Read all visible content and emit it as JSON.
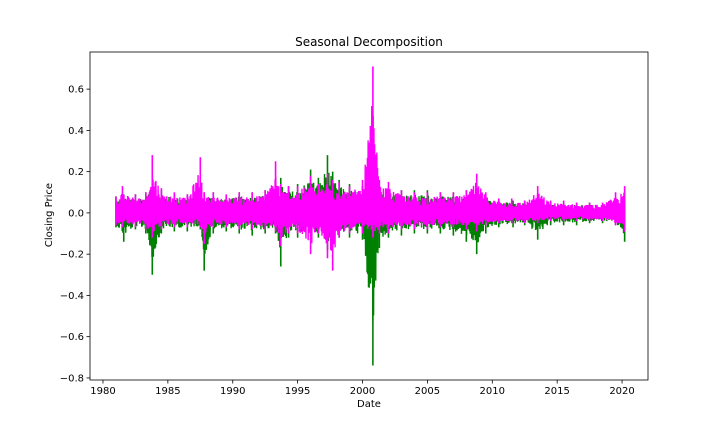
{
  "chart_data": {
    "type": "line",
    "title": "Seasonal Decomposition",
    "xlabel": "Date",
    "ylabel": "Closing Price",
    "xlim": [
      1979,
      2022
    ],
    "ylim": [
      -0.81,
      0.78
    ],
    "grid": false,
    "xticks": [
      1980,
      1985,
      1990,
      1995,
      2000,
      2005,
      2010,
      2015,
      2020
    ],
    "xtick_labels": [
      "1980",
      "1985",
      "1990",
      "1995",
      "2000",
      "2005",
      "2010",
      "2015",
      "2020"
    ],
    "yticks": [
      0.6,
      0.4,
      0.2,
      0.0,
      -0.2,
      -0.4,
      -0.6,
      -0.8
    ],
    "ytick_labels": [
      "0.6",
      "0.4",
      "0.2",
      "0.0",
      "−0.2",
      "−0.4",
      "−0.6",
      "−0.8"
    ],
    "series": [
      {
        "color": "#008000",
        "x": [
          1981.0,
          1981.6,
          1982.5,
          1983.3,
          1983.8,
          1984.5,
          1985.5,
          1986.5,
          1987.5,
          1987.8,
          1988.5,
          1989.5,
          1990.5,
          1991.5,
          1992.5,
          1993.3,
          1993.7,
          1994.3,
          1995.0,
          1996.0,
          1996.6,
          1997.3,
          1997.7,
          1998.2,
          1999.0,
          2000.0,
          2000.8,
          2001.3,
          2002.0,
          2003.0,
          2004.0,
          2005.0,
          2006.0,
          2007.0,
          2008.0,
          2008.8,
          2009.5,
          2010.5,
          2011.6,
          2012.5,
          2013.5,
          2014.5,
          2015.5,
          2016.5,
          2017.5,
          2018.5,
          2019.5,
          2020.2
        ],
        "low": [
          -0.07,
          -0.14,
          -0.08,
          -0.1,
          -0.3,
          -0.1,
          -0.09,
          -0.09,
          -0.08,
          -0.28,
          -0.1,
          -0.09,
          -0.1,
          -0.11,
          -0.1,
          -0.1,
          -0.26,
          -0.12,
          -0.12,
          -0.13,
          -0.12,
          -0.18,
          -0.14,
          -0.12,
          -0.12,
          -0.13,
          -0.74,
          -0.17,
          -0.12,
          -0.11,
          -0.1,
          -0.1,
          -0.1,
          -0.11,
          -0.14,
          -0.2,
          -0.1,
          -0.07,
          -0.07,
          -0.06,
          -0.13,
          -0.06,
          -0.06,
          -0.06,
          -0.05,
          -0.05,
          -0.06,
          -0.14
        ],
        "high": [
          0.08,
          0.09,
          0.09,
          0.1,
          0.16,
          0.11,
          0.09,
          0.09,
          0.1,
          0.1,
          0.1,
          0.08,
          0.1,
          0.1,
          0.11,
          0.12,
          0.17,
          0.13,
          0.14,
          0.21,
          0.17,
          0.28,
          0.2,
          0.16,
          0.14,
          0.13,
          0.13,
          0.12,
          0.12,
          0.11,
          0.11,
          0.11,
          0.1,
          0.1,
          0.11,
          0.1,
          0.08,
          0.07,
          0.06,
          0.06,
          0.05,
          0.05,
          0.05,
          0.05,
          0.05,
          0.04,
          0.05,
          0.05
        ]
      },
      {
        "color": "#ff00ff",
        "x": [
          1981.0,
          1981.5,
          1982.5,
          1983.3,
          1983.8,
          1984.5,
          1985.5,
          1986.5,
          1987.5,
          1987.8,
          1988.5,
          1989.5,
          1990.5,
          1991.5,
          1992.5,
          1993.3,
          1993.7,
          1994.3,
          1995.0,
          1996.0,
          1996.6,
          1997.3,
          1997.7,
          1998.2,
          1999.0,
          2000.0,
          2000.8,
          2001.3,
          2002.0,
          2003.0,
          2004.0,
          2005.0,
          2006.0,
          2007.0,
          2008.0,
          2008.8,
          2009.5,
          2010.5,
          2011.5,
          2012.5,
          2013.5,
          2014.5,
          2015.5,
          2016.5,
          2017.5,
          2018.5,
          2019.5,
          2020.2
        ],
        "low": [
          -0.06,
          -0.07,
          -0.07,
          -0.08,
          -0.12,
          -0.08,
          -0.07,
          -0.07,
          -0.07,
          -0.15,
          -0.07,
          -0.07,
          -0.08,
          -0.08,
          -0.08,
          -0.09,
          -0.16,
          -0.1,
          -0.1,
          -0.2,
          -0.1,
          -0.22,
          -0.28,
          -0.12,
          -0.1,
          -0.1,
          -0.12,
          -0.1,
          -0.1,
          -0.08,
          -0.08,
          -0.08,
          -0.07,
          -0.07,
          -0.08,
          -0.09,
          -0.06,
          -0.05,
          -0.05,
          -0.05,
          -0.05,
          -0.04,
          -0.04,
          -0.04,
          -0.04,
          -0.04,
          -0.06,
          -0.09
        ],
        "high": [
          0.08,
          0.13,
          0.09,
          0.1,
          0.28,
          0.12,
          0.1,
          0.09,
          0.27,
          0.1,
          0.1,
          0.09,
          0.1,
          0.1,
          0.11,
          0.25,
          0.14,
          0.13,
          0.13,
          0.18,
          0.14,
          0.19,
          0.16,
          0.15,
          0.13,
          0.16,
          0.71,
          0.16,
          0.15,
          0.11,
          0.1,
          0.1,
          0.1,
          0.1,
          0.11,
          0.19,
          0.1,
          0.07,
          0.07,
          0.06,
          0.13,
          0.06,
          0.06,
          0.05,
          0.05,
          0.05,
          0.1,
          0.13
        ]
      }
    ]
  }
}
